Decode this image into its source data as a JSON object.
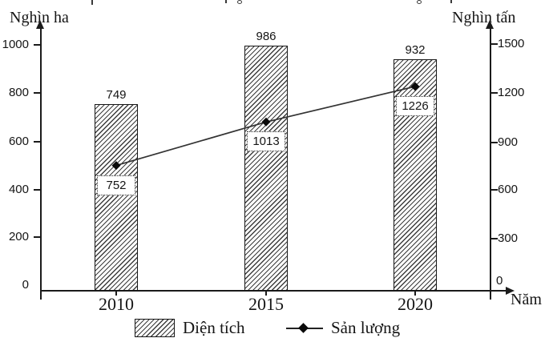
{
  "axis_titles": {
    "left": "Nghìn ha",
    "right": "Nghìn tấn",
    "x": "Năm"
  },
  "legend": {
    "area": "Diện tích",
    "line": "Sản lượng"
  },
  "colors": {
    "ink": "#1b1b1b",
    "line": "#333333",
    "marker": "#0a0a0a",
    "background": "#ffffff"
  },
  "chart_data": {
    "type": "bar",
    "subtype": "bar+line dual axis",
    "categories": [
      "2010",
      "2015",
      "2020"
    ],
    "series": [
      {
        "name": "Diện tích",
        "type": "bar",
        "axis": "left",
        "unit": "Nghìn ha",
        "values": [
          749,
          986,
          932
        ]
      },
      {
        "name": "Sản lượng",
        "type": "line",
        "axis": "right",
        "unit": "Nghìn tấn",
        "values": [
          752,
          1013,
          1226
        ]
      }
    ],
    "left_axis": {
      "title": "Nghìn ha",
      "ticks": [
        1000,
        800,
        600,
        400,
        200,
        0
      ],
      "range": [
        0,
        1100
      ]
    },
    "right_axis": {
      "title": "Nghìn tấn",
      "ticks": [
        1500,
        1200,
        900,
        600,
        300,
        0
      ],
      "range": [
        0,
        1650
      ]
    },
    "x_axis": {
      "title": "Năm"
    },
    "legend_position": "bottom",
    "grid": false,
    "bar_hatch": "diagonal"
  }
}
